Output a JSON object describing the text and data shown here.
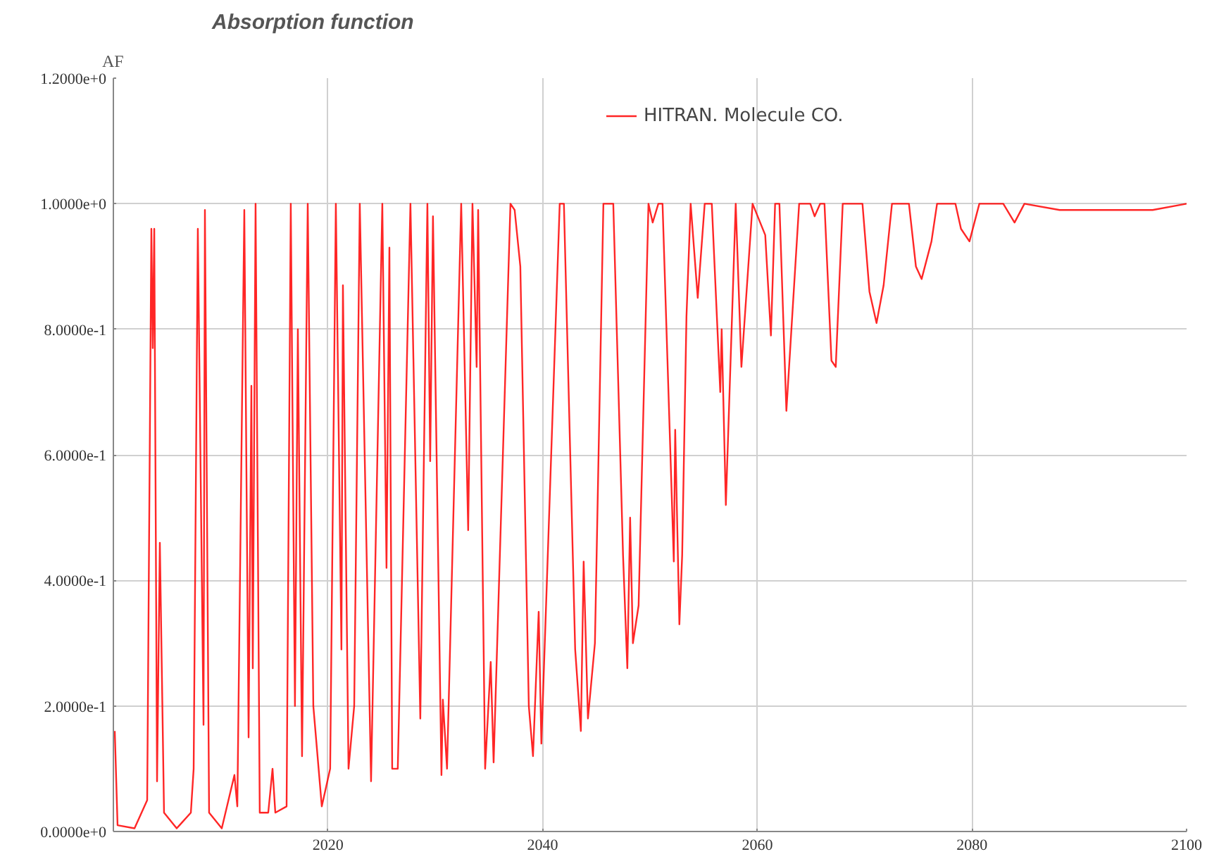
{
  "chart_data": {
    "type": "line",
    "title": "Absorption function",
    "ylabel": "AF",
    "xlim": [
      2000,
      2100
    ],
    "xticks": [
      2020,
      2040,
      2060,
      2080,
      2100
    ],
    "ylim": [
      0,
      1.2
    ],
    "yticks": [
      {
        "value": 0,
        "label": "0.0000e+0"
      },
      {
        "value": 0.2,
        "label": "2.0000e-1"
      },
      {
        "value": 0.4,
        "label": "4.0000e-1"
      },
      {
        "value": 0.6,
        "label": "6.0000e-1"
      },
      {
        "value": 0.8,
        "label": "8.0000e-1"
      },
      {
        "value": 1.0,
        "label": "1.0000e+0"
      },
      {
        "value": 1.2,
        "label": "1.2000e+0"
      }
    ],
    "grid": true,
    "legend": "top",
    "marker": "none",
    "line_style": "solid",
    "x": [
      2000.13,
      2000.39,
      2001.97,
      2003.15,
      2003.54,
      2003.67,
      2003.81,
      2004.07,
      2004.33,
      2004.72,
      2005.9,
      2007.22,
      2007.48,
      2007.87,
      2008.4,
      2008.53,
      2008.92,
      2010.1,
      2011.28,
      2011.55,
      2012.2,
      2012.6,
      2012.86,
      2012.99,
      2013.25,
      2013.64,
      2014.43,
      2014.83,
      2015.09,
      2016.14,
      2016.53,
      2016.92,
      2017.19,
      2017.58,
      2018.11,
      2018.63,
      2019.42,
      2020.2,
      2020.73,
      2021.25,
      2021.39,
      2021.91,
      2022.44,
      2022.96,
      2024.01,
      2025.06,
      2025.45,
      2025.72,
      2025.98,
      2026.5,
      2027.68,
      2028.6,
      2029.26,
      2029.52,
      2029.78,
      2030.57,
      2030.7,
      2031.09,
      2032.41,
      2033.06,
      2033.46,
      2033.85,
      2033.99,
      2034.64,
      2035.16,
      2035.43,
      2037.0,
      2037.39,
      2037.92,
      2038.71,
      2039.1,
      2039.63,
      2039.88,
      2041.59,
      2041.98,
      2043.03,
      2043.56,
      2043.82,
      2044.22,
      2044.87,
      2045.66,
      2046.58,
      2047.49,
      2047.89,
      2048.15,
      2048.41,
      2048.94,
      2049.86,
      2050.25,
      2050.78,
      2051.17,
      2052.22,
      2052.35,
      2052.74,
      2053.0,
      2053.4,
      2053.79,
      2054.45,
      2055.1,
      2055.76,
      2056.55,
      2056.68,
      2057.07,
      2057.99,
      2058.52,
      2059.56,
      2060.74,
      2061.27,
      2061.66,
      2062.06,
      2062.71,
      2063.9,
      2064.94,
      2065.34,
      2065.86,
      2066.26,
      2066.91,
      2067.31,
      2067.96,
      2069.8,
      2070.45,
      2071.11,
      2071.77,
      2072.55,
      2074.13,
      2074.78,
      2075.31,
      2076.23,
      2076.75,
      2078.46,
      2078.98,
      2079.77,
      2080.69,
      2082.92,
      2083.97,
      2084.89,
      2088.17,
      2092.9,
      2096.84,
      2100.0
    ],
    "series": [
      {
        "name": "HITRAN. Molecule CO.",
        "color": "#ff0000",
        "values": [
          0.16,
          0.01,
          0.005,
          0.05,
          0.96,
          0.77,
          0.96,
          0.08,
          0.46,
          0.03,
          0.005,
          0.03,
          0.1,
          0.96,
          0.17,
          0.99,
          0.03,
          0.005,
          0.09,
          0.04,
          0.99,
          0.15,
          0.71,
          0.26,
          1.0,
          0.03,
          0.03,
          0.1,
          0.03,
          0.04,
          1.0,
          0.2,
          0.8,
          0.12,
          1.0,
          0.2,
          0.04,
          0.1,
          1.0,
          0.29,
          0.87,
          0.1,
          0.2,
          1.0,
          0.08,
          1.0,
          0.42,
          0.93,
          0.1,
          0.1,
          1.0,
          0.18,
          1.0,
          0.59,
          0.98,
          0.09,
          0.21,
          0.1,
          1.0,
          0.48,
          1.0,
          0.74,
          0.99,
          0.1,
          0.27,
          0.11,
          1.0,
          0.99,
          0.9,
          0.2,
          0.12,
          0.35,
          0.14,
          1.0,
          1.0,
          0.29,
          0.16,
          0.43,
          0.18,
          0.3,
          1.0,
          1.0,
          0.44,
          0.26,
          0.5,
          0.3,
          0.36,
          1.0,
          0.97,
          1.0,
          1.0,
          0.43,
          0.64,
          0.33,
          0.44,
          0.82,
          1.0,
          0.85,
          1.0,
          1.0,
          0.7,
          0.8,
          0.52,
          1.0,
          0.74,
          1.0,
          0.95,
          0.79,
          1.0,
          1.0,
          0.67,
          1.0,
          1.0,
          0.98,
          1.0,
          1.0,
          0.75,
          0.74,
          1.0,
          1.0,
          0.86,
          0.81,
          0.87,
          1.0,
          1.0,
          0.9,
          0.88,
          0.94,
          1.0,
          1.0,
          0.96,
          0.94,
          1.0,
          1.0,
          0.97,
          1.0,
          0.99,
          0.99,
          0.99,
          1.0
        ]
      }
    ]
  }
}
